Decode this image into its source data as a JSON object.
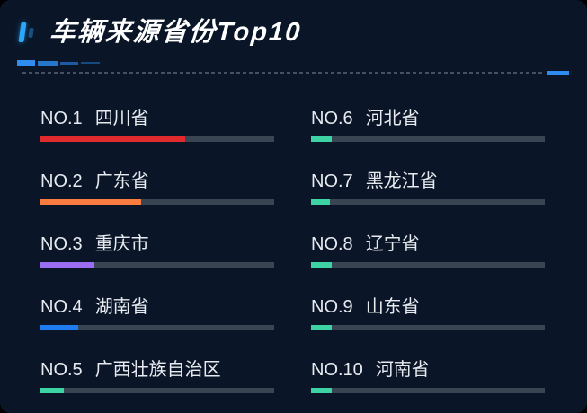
{
  "panel": {
    "title": "车辆来源省份Top10",
    "background_color": "#0a1628",
    "accent_blue": "#2e8cf0",
    "track_color": "#3a4553"
  },
  "ranking": {
    "items": [
      {
        "rank": "NO.1",
        "name": "四川省",
        "percent": 62,
        "color": "#e02a2e"
      },
      {
        "rank": "NO.2",
        "name": "广东省",
        "percent": 43,
        "color": "#fa7c3e"
      },
      {
        "rank": "NO.3",
        "name": "重庆市",
        "percent": 23,
        "color": "#9a6df2"
      },
      {
        "rank": "NO.4",
        "name": "湖南省",
        "percent": 16,
        "color": "#1f7bf0"
      },
      {
        "rank": "NO.5",
        "name": "广西壮族自治区",
        "percent": 10,
        "color": "#3dd3a5"
      },
      {
        "rank": "NO.6",
        "name": "河北省",
        "percent": 9,
        "color": "#3dd3a5"
      },
      {
        "rank": "NO.7",
        "name": "黑龙江省",
        "percent": 8,
        "color": "#3dd3a5"
      },
      {
        "rank": "NO.8",
        "name": "辽宁省",
        "percent": 9,
        "color": "#3dd3a5"
      },
      {
        "rank": "NO.9",
        "name": "山东省",
        "percent": 9,
        "color": "#3dd3a5"
      },
      {
        "rank": "NO.10",
        "name": "河南省",
        "percent": 9,
        "color": "#3dd3a5"
      }
    ]
  },
  "chart_data": {
    "type": "bar",
    "title": "车辆来源省份Top10",
    "categories": [
      "四川省",
      "广东省",
      "重庆市",
      "湖南省",
      "广西壮族自治区",
      "河北省",
      "黑龙江省",
      "辽宁省",
      "山东省",
      "河南省"
    ],
    "values": [
      62,
      43,
      23,
      16,
      10,
      9,
      8,
      9,
      9,
      9
    ],
    "xlabel": "",
    "ylabel": "",
    "ylim": [
      0,
      100
    ],
    "value_note": "bar fill as % of track, estimated from pixels; no numeric labels shown",
    "orientation": "horizontal",
    "layout": "two-column ranking, NO.1-5 left, NO.6-10 right",
    "grid": false,
    "legend": false,
    "series_colors": [
      "#e02a2e",
      "#fa7c3e",
      "#9a6df2",
      "#1f7bf0",
      "#3dd3a5",
      "#3dd3a5",
      "#3dd3a5",
      "#3dd3a5",
      "#3dd3a5",
      "#3dd3a5"
    ]
  }
}
